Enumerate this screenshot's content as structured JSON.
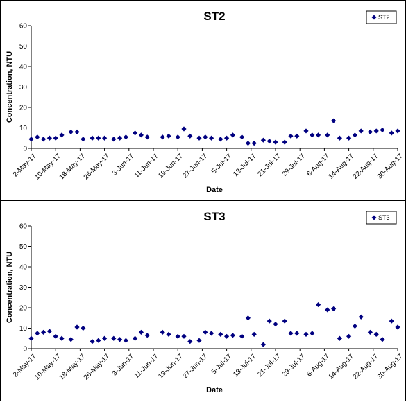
{
  "colors": {
    "marker": "#000080",
    "axis": "#000000",
    "background": "#ffffff"
  },
  "chart_data": [
    {
      "type": "scatter",
      "title": "ST2",
      "xlabel": "Date",
      "ylabel": "Concentration, NTU",
      "ylim": [
        0,
        60
      ],
      "yticks": [
        "0",
        "10",
        "20",
        "30",
        "40",
        "50",
        "60"
      ],
      "xlim": [
        "2017-05-02",
        "2017-08-30"
      ],
      "xticks": [
        "2-May-17",
        "10-May-17",
        "18-May-17",
        "26-May-17",
        "3-Jun-17",
        "11-Jun-17",
        "19-Jun-17",
        "27-Jun-17",
        "5-Jul-17",
        "13-Jul-17",
        "21-Jul-17",
        "29-Jul-17",
        "6-Aug-17",
        "14-Aug-17",
        "22-Aug-17",
        "30-Aug-17"
      ],
      "legend": {
        "position": "top-right",
        "entries": [
          "ST2"
        ]
      },
      "grid": false,
      "series": [
        {
          "name": "ST2",
          "x": [
            "2017-05-02",
            "2017-05-04",
            "2017-05-06",
            "2017-05-08",
            "2017-05-10",
            "2017-05-12",
            "2017-05-15",
            "2017-05-17",
            "2017-05-19",
            "2017-05-22",
            "2017-05-24",
            "2017-05-26",
            "2017-05-29",
            "2017-05-31",
            "2017-06-02",
            "2017-06-05",
            "2017-06-07",
            "2017-06-09",
            "2017-06-14",
            "2017-06-16",
            "2017-06-19",
            "2017-06-21",
            "2017-06-23",
            "2017-06-26",
            "2017-06-28",
            "2017-06-30",
            "2017-07-03",
            "2017-07-05",
            "2017-07-07",
            "2017-07-10",
            "2017-07-12",
            "2017-07-14",
            "2017-07-17",
            "2017-07-19",
            "2017-07-21",
            "2017-07-24",
            "2017-07-26",
            "2017-07-28",
            "2017-07-31",
            "2017-08-02",
            "2017-08-04",
            "2017-08-07",
            "2017-08-09",
            "2017-08-11",
            "2017-08-14",
            "2017-08-16",
            "2017-08-18",
            "2017-08-21",
            "2017-08-23",
            "2017-08-25",
            "2017-08-28",
            "2017-08-30"
          ],
          "y": [
            4.5,
            5.5,
            4.5,
            5,
            5,
            6.5,
            8,
            8,
            4.5,
            5,
            5,
            5,
            4.5,
            5,
            5.5,
            7.5,
            6.5,
            5.5,
            5.5,
            6,
            5.5,
            9.5,
            6,
            5,
            5.5,
            5,
            4.5,
            5,
            6.5,
            5.5,
            2.5,
            2.5,
            4,
            3.5,
            3,
            3,
            6,
            6,
            8.5,
            6.5,
            6.5,
            6.5,
            13.5,
            5,
            5,
            6.5,
            8.5,
            8,
            8.5,
            9,
            7.5,
            8.5
          ]
        }
      ]
    },
    {
      "type": "scatter",
      "title": "ST3",
      "xlabel": "Date",
      "ylabel": "Concentration, NTU",
      "ylim": [
        0,
        60
      ],
      "yticks": [
        "0",
        "10",
        "20",
        "30",
        "40",
        "50",
        "60"
      ],
      "xlim": [
        "2017-05-02",
        "2017-08-30"
      ],
      "xticks": [
        "2-May-17",
        "10-May-17",
        "18-May-17",
        "26-May-17",
        "3-Jun-17",
        "11-Jun-17",
        "19-Jun-17",
        "27-Jun-17",
        "5-Jul-17",
        "13-Jul-17",
        "21-Jul-17",
        "29-Jul-17",
        "6-Aug-17",
        "14-Aug-17",
        "22-Aug-17",
        "30-Aug-17"
      ],
      "legend": {
        "position": "top-right",
        "entries": [
          "ST3"
        ]
      },
      "grid": false,
      "series": [
        {
          "name": "ST3",
          "x": [
            "2017-05-02",
            "2017-05-04",
            "2017-05-06",
            "2017-05-08",
            "2017-05-10",
            "2017-05-12",
            "2017-05-15",
            "2017-05-17",
            "2017-05-19",
            "2017-05-22",
            "2017-05-24",
            "2017-05-26",
            "2017-05-29",
            "2017-05-31",
            "2017-06-02",
            "2017-06-05",
            "2017-06-07",
            "2017-06-09",
            "2017-06-14",
            "2017-06-16",
            "2017-06-19",
            "2017-06-21",
            "2017-06-23",
            "2017-06-26",
            "2017-06-28",
            "2017-06-30",
            "2017-07-03",
            "2017-07-05",
            "2017-07-07",
            "2017-07-10",
            "2017-07-12",
            "2017-07-14",
            "2017-07-17",
            "2017-07-19",
            "2017-07-21",
            "2017-07-24",
            "2017-07-26",
            "2017-07-28",
            "2017-07-31",
            "2017-08-02",
            "2017-08-04",
            "2017-08-07",
            "2017-08-09",
            "2017-08-11",
            "2017-08-14",
            "2017-08-16",
            "2017-08-18",
            "2017-08-21",
            "2017-08-23",
            "2017-08-25",
            "2017-08-28",
            "2017-08-30"
          ],
          "y": [
            5,
            7.5,
            8,
            8.5,
            6,
            5,
            4.5,
            10.5,
            10,
            3.5,
            4,
            5,
            5,
            4.5,
            4,
            5,
            8,
            6.5,
            8,
            7,
            6,
            6,
            3.5,
            4,
            8,
            7.5,
            7,
            6,
            6.5,
            6,
            15,
            7,
            2,
            13.5,
            12,
            13.5,
            7.5,
            7.5,
            7,
            7.5,
            21.5,
            19,
            19.5,
            5,
            6,
            11,
            15.5,
            8,
            7,
            4.5,
            13.5,
            10.5
          ]
        }
      ]
    }
  ]
}
